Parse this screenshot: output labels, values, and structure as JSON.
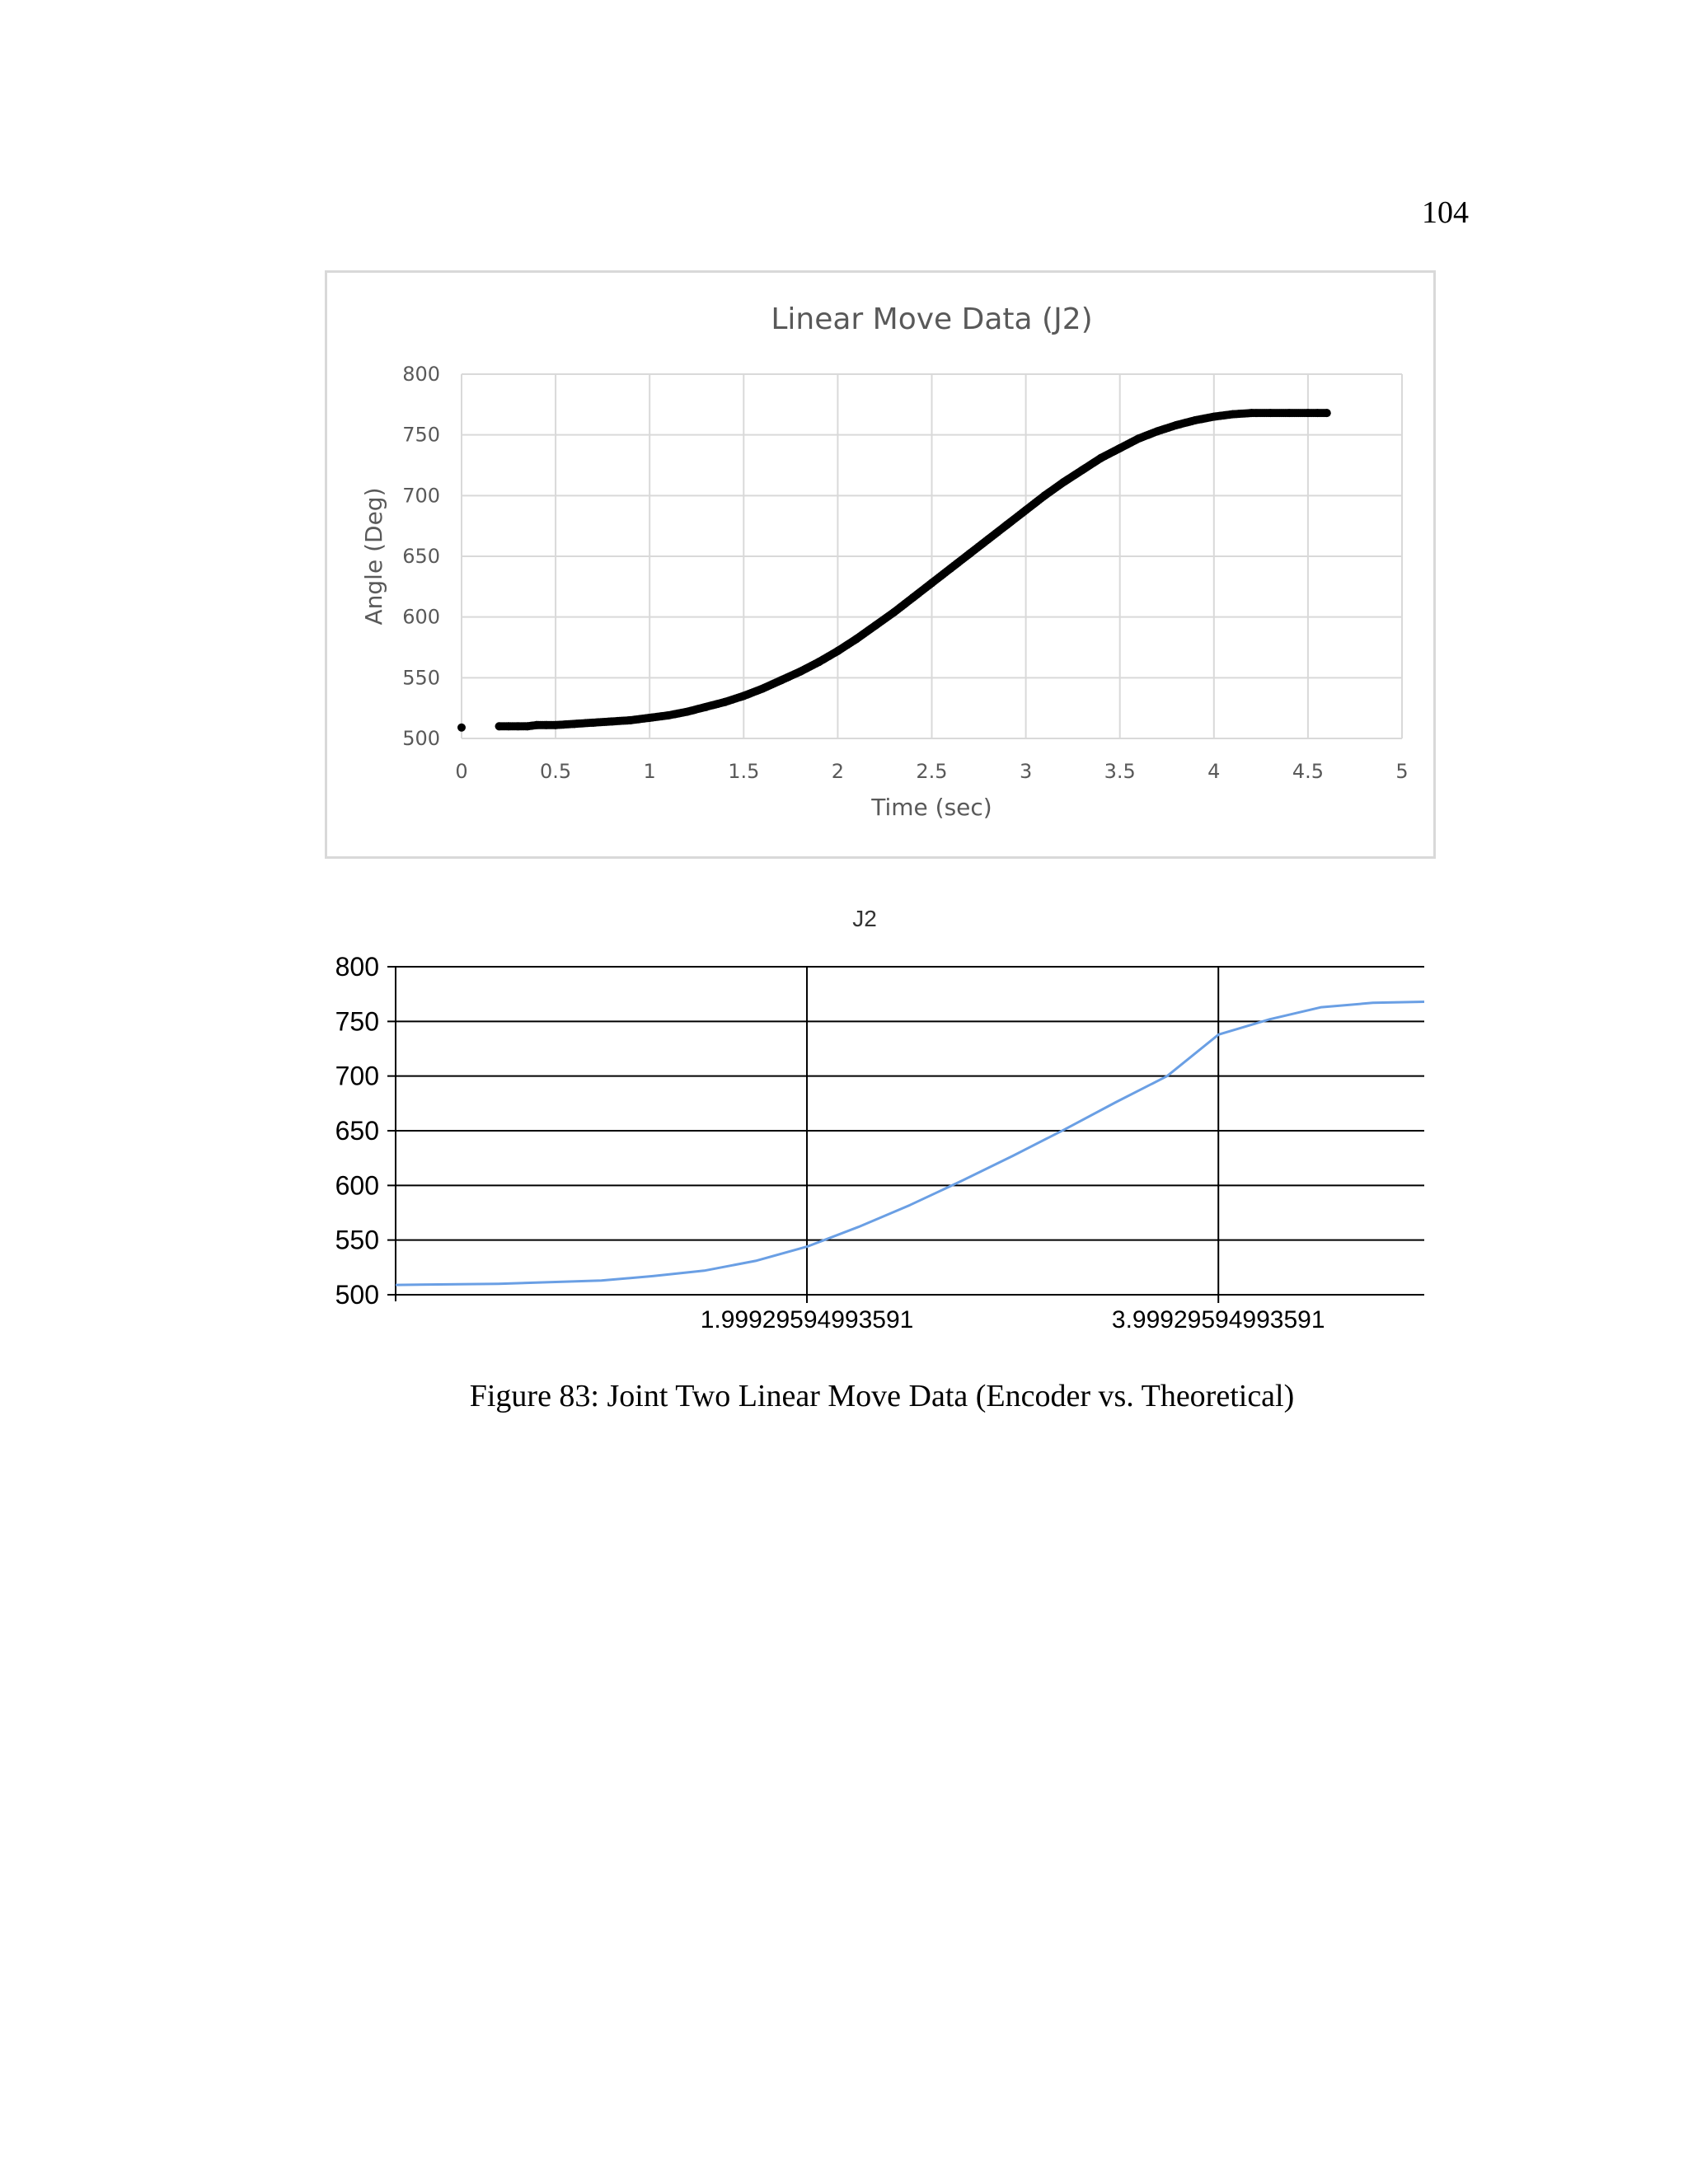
{
  "page": {
    "number": "104",
    "caption": "Figure 83: Joint Two Linear Move Data (Encoder vs. Theoretical)"
  },
  "colors": {
    "encoder_points": "#000000",
    "theoretical_line": "#6a9fe4",
    "chart1_grid": "#d9d9d9",
    "chart1_text": "#595959",
    "chart2_grid": "#000000"
  },
  "chart_data": [
    {
      "type": "scatter",
      "title": "Linear Move Data (J2)",
      "xlabel": "Time (sec)",
      "ylabel": "Angle (Deg)",
      "xlim": [
        0,
        5
      ],
      "ylim": [
        500,
        800
      ],
      "xticks": [
        "0",
        "0.5",
        "1",
        "1.5",
        "2",
        "2.5",
        "3",
        "3.5",
        "4",
        "4.5",
        "5"
      ],
      "yticks": [
        "500",
        "550",
        "600",
        "650",
        "700",
        "750",
        "800"
      ],
      "grid": true,
      "series": [
        {
          "x": [
            0,
            0.2,
            0.25,
            0.3,
            0.35,
            0.4,
            0.45,
            0.5,
            0.6,
            0.7,
            0.8,
            0.9,
            1.0,
            1.1,
            1.2,
            1.3,
            1.4,
            1.5,
            1.6,
            1.7,
            1.8,
            1.9,
            2.0,
            2.1,
            2.2,
            2.3,
            2.4,
            2.5,
            2.6,
            2.7,
            2.8,
            2.9,
            3.0,
            3.1,
            3.2,
            3.3,
            3.4,
            3.5,
            3.6,
            3.7,
            3.8,
            3.9,
            4.0,
            4.1,
            4.2,
            4.3,
            4.4,
            4.5,
            4.55,
            4.6
          ],
          "y": [
            509,
            510,
            510,
            510,
            510,
            511,
            511,
            511,
            512,
            513,
            514,
            515,
            517,
            519,
            522,
            526,
            530,
            535,
            541,
            548,
            555,
            563,
            572,
            582,
            593,
            604,
            616,
            628,
            640,
            652,
            664,
            676,
            688,
            700,
            711,
            721,
            731,
            739,
            747,
            753,
            758,
            762,
            765,
            767,
            768,
            768,
            768,
            768,
            768,
            768
          ]
        }
      ]
    },
    {
      "type": "line",
      "title": "J2",
      "xlim": [
        0,
        5
      ],
      "ylim": [
        500,
        800
      ],
      "xticks": [
        {
          "value": 1.99929594993591,
          "label": "1.99929594993591"
        },
        {
          "value": 3.99929594993591,
          "label": "3.99929594993591"
        }
      ],
      "yticks": [
        "500",
        "550",
        "600",
        "650",
        "700",
        "750",
        "800"
      ],
      "grid": true,
      "series": [
        {
          "x": [
            0,
            0.5,
            1.0,
            1.25,
            1.5,
            1.75,
            2.0,
            2.25,
            2.5,
            2.75,
            3.0,
            3.25,
            3.5,
            3.75,
            4.0,
            4.25,
            4.5,
            4.75,
            5.0
          ],
          "y": [
            509,
            510,
            513,
            517,
            522,
            531,
            544,
            562,
            582,
            604,
            627,
            651,
            676,
            700,
            738,
            752,
            763,
            767,
            768
          ]
        }
      ]
    }
  ]
}
